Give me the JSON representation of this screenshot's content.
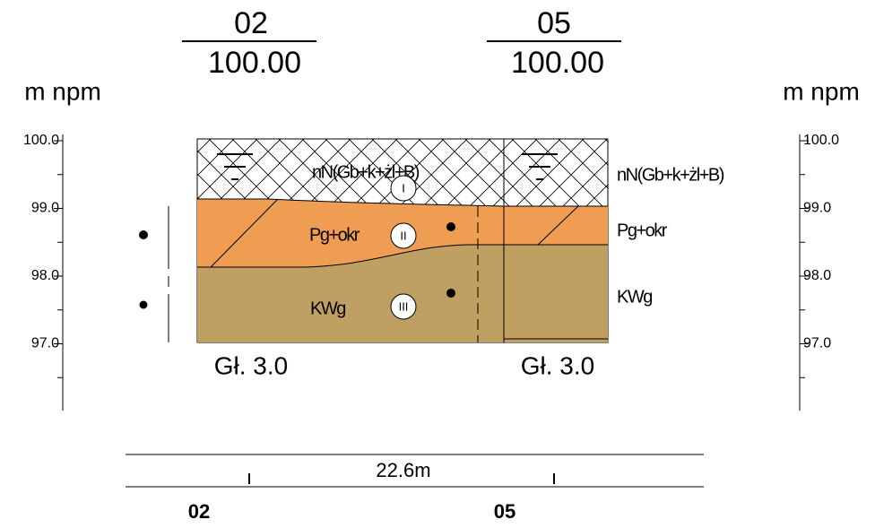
{
  "boreholes": [
    {
      "id": "02",
      "elevation": "100.00",
      "depth": "Gł. 3.0"
    },
    {
      "id": "05",
      "elevation": "100.00",
      "depth": "Gł. 3.0"
    }
  ],
  "scale": {
    "unit": "m npm",
    "labels": [
      "100.0",
      "99.0",
      "98.0",
      "97.0"
    ]
  },
  "layers": [
    {
      "symbol": "I",
      "label": "nN(Gb+k+żl+B)"
    },
    {
      "symbol": "II",
      "label": "Pg+okr"
    },
    {
      "symbol": "III",
      "label": "KWg"
    }
  ],
  "distance": "22.6m"
}
